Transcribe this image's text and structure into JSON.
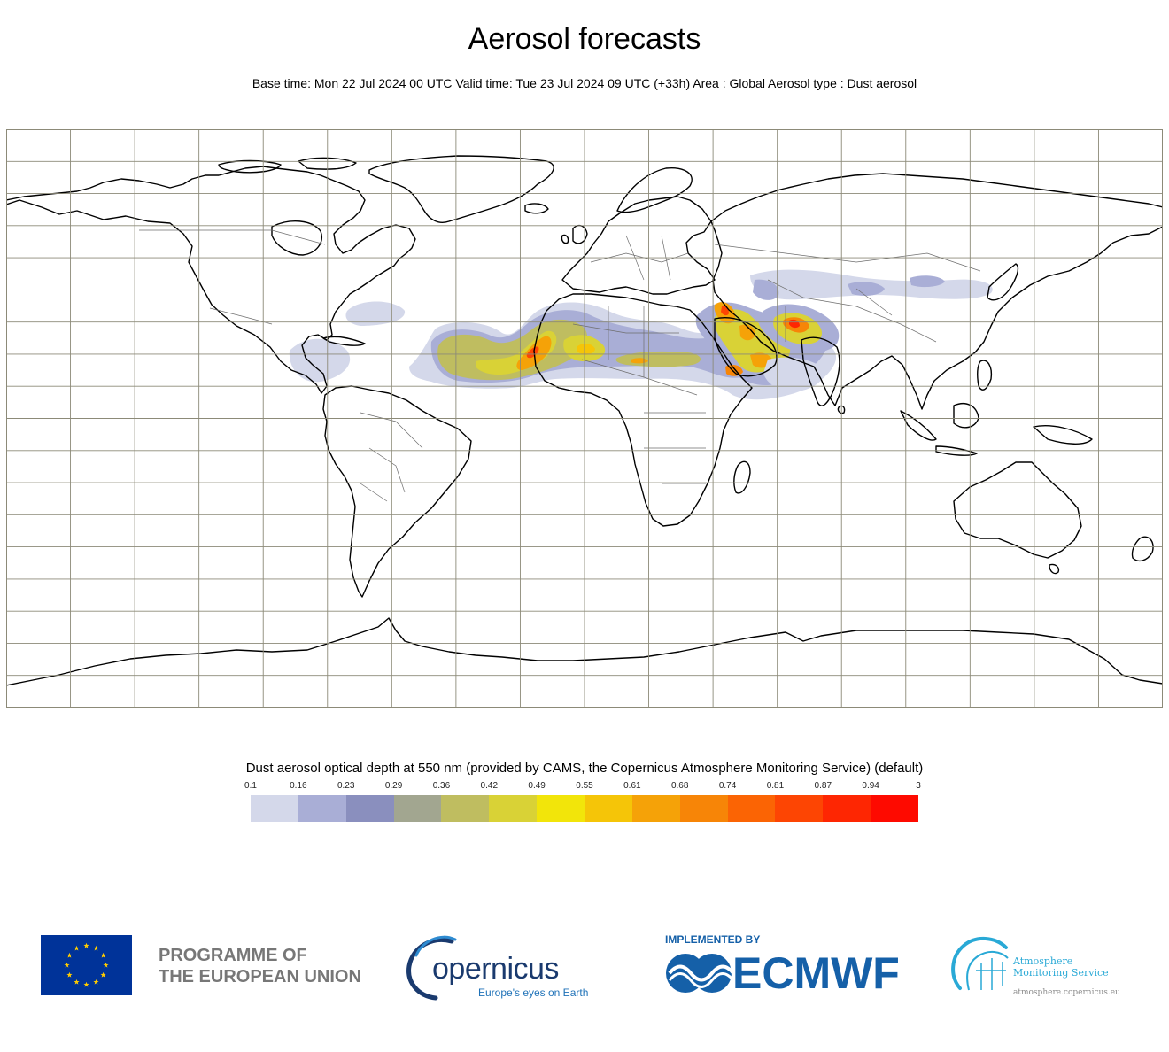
{
  "header": {
    "title": "Aerosol forecasts",
    "subtitle": "Base time: Mon 22 Jul 2024 00 UTC Valid time: Tue 23 Jul 2024 09 UTC (+33h) Area : Global Aerosol type : Dust aerosol"
  },
  "map": {
    "projection": "equirectangular",
    "lon_range": [
      -180,
      180
    ],
    "lat_range": [
      -90,
      90
    ],
    "grid_spacing_lon_deg": 20,
    "grid_spacing_lat_deg": 10,
    "colors": {
      "gridline": "#8c8a78",
      "coastline": "#000000",
      "border": "#6e6e6e"
    },
    "dust_plumes": [
      {
        "region": "Atlantic Saharan plume",
        "level": 0.16
      },
      {
        "region": "Atlantic Saharan plume",
        "level": 0.36
      },
      {
        "region": "West Africa / Sahel",
        "level": 0.55
      },
      {
        "region": "West Africa / Sahel",
        "level": 0.81
      },
      {
        "region": "Arabian Peninsula",
        "level": 0.49
      },
      {
        "region": "Iraq / Persian Gulf",
        "level": 0.81
      },
      {
        "region": "Pakistan / Thar",
        "level": 0.81
      },
      {
        "region": "Central Asia",
        "level": 0.16
      },
      {
        "region": "Gulf of Mexico / Caribbean",
        "level": 0.16
      }
    ]
  },
  "legend": {
    "title": "Dust aerosol optical depth at 550 nm (provided by CAMS, the Copernicus Atmosphere Monitoring Service) (default)",
    "ticks": [
      "0.1",
      "0.16",
      "0.23",
      "0.29",
      "0.36",
      "0.42",
      "0.49",
      "0.55",
      "0.61",
      "0.68",
      "0.74",
      "0.81",
      "0.87",
      "0.94",
      "3"
    ],
    "colors": [
      "#d4d8ea",
      "#a9aed6",
      "#8a8fbe",
      "#a2a690",
      "#bfbd60",
      "#d9d236",
      "#f2e50a",
      "#f5c508",
      "#f5a208",
      "#f78507",
      "#fb6404",
      "#fd4503",
      "#fe2602",
      "#fe0a00"
    ]
  },
  "footer": {
    "eu_line1": "PROGRAMME OF",
    "eu_line2": "THE EUROPEAN UNION",
    "copernicus_name": "opernicus",
    "copernicus_tagline": "Europe's eyes on Earth",
    "implemented_by": "IMPLEMENTED BY",
    "ecmwf": "ECMWF",
    "cams_line1": "Atmosphere",
    "cams_line2": "Monitoring Service",
    "cams_url": "atmosphere.copernicus.eu",
    "colors": {
      "eu_blue": "#003399",
      "eu_gold": "#ffcc00",
      "eu_text": "#777777",
      "ecmwf_blue": "#1560a8",
      "cams_cyan": "#29a9d6"
    }
  }
}
